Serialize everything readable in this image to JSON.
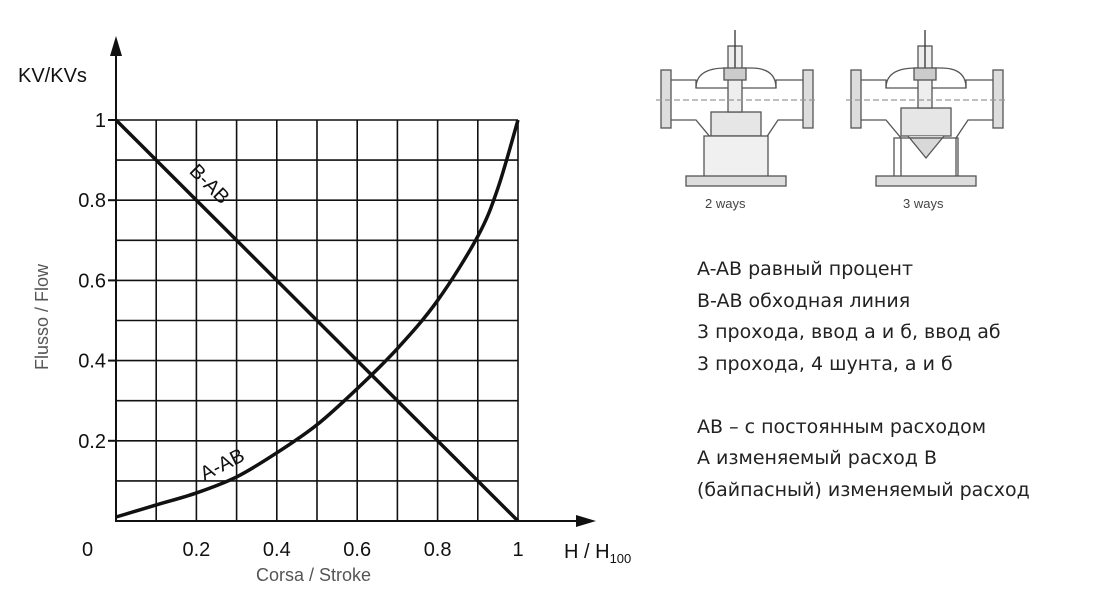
{
  "chart_data": {
    "type": "line",
    "ylabel": "KV/KVs",
    "ylabel_side": "Flusso / Flow",
    "xlabel": "H / H",
    "xlabel_sub": "100",
    "xlabel_bottom": "Corsa / Stroke",
    "xlim": [
      0,
      1
    ],
    "ylim": [
      0,
      1
    ],
    "x_ticks": [
      "0",
      "0.2",
      "0.4",
      "0.6",
      "0.8",
      "1"
    ],
    "y_ticks": [
      "0.2",
      "0.4",
      "0.6",
      "0.8",
      "1"
    ],
    "grid": true,
    "series": [
      {
        "name": "B-AB",
        "x": [
          0,
          0.1,
          0.2,
          0.3,
          0.4,
          0.5,
          0.6,
          0.7,
          0.8,
          0.9,
          1.0
        ],
        "y": [
          1.0,
          0.9,
          0.8,
          0.7,
          0.6,
          0.5,
          0.4,
          0.3,
          0.2,
          0.1,
          0.0
        ]
      },
      {
        "name": "A-AB",
        "x": [
          0,
          0.1,
          0.2,
          0.3,
          0.4,
          0.5,
          0.6,
          0.7,
          0.8,
          0.9,
          0.95,
          1.0
        ],
        "y": [
          0.01,
          0.04,
          0.07,
          0.11,
          0.17,
          0.24,
          0.33,
          0.43,
          0.55,
          0.71,
          0.83,
          1.0
        ]
      }
    ]
  },
  "diagrams": {
    "left_label": "2 ways",
    "right_label": "3 ways"
  },
  "legend": {
    "lines": [
      "A-AB равный процент",
      "B-AB обходная линия",
      "3 прохода, ввод а и б, ввод аб",
      "3 прохода, 4 шунта, а и б",
      "",
      "AB – с постоянным расходом",
      "A  изменяемый расход B",
      "(байпасный)  изменяемый расход"
    ]
  }
}
